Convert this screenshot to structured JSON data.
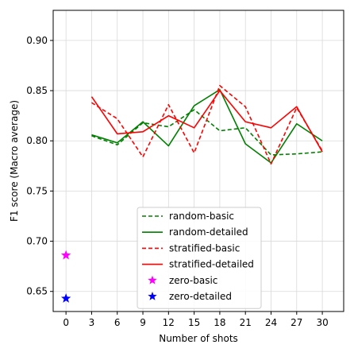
{
  "chart_data": {
    "type": "line",
    "title": "",
    "xlabel": "Number of shots",
    "ylabel": "F1 score (Macro average)",
    "xlim": [
      -1.5,
      32.5
    ],
    "ylim": [
      0.63,
      0.93
    ],
    "xticks": [
      0,
      3,
      6,
      9,
      12,
      15,
      18,
      21,
      24,
      27,
      30
    ],
    "yticks": [
      0.65,
      0.7,
      0.75,
      0.8,
      0.85,
      0.9
    ],
    "ytick_labels": [
      "0.65",
      "0.70",
      "0.75",
      "0.80",
      "0.85",
      "0.90"
    ],
    "grid": true,
    "legend_position": "lower-center",
    "x": [
      3,
      6,
      9,
      12,
      15,
      18,
      21,
      24,
      27,
      30
    ],
    "series": [
      {
        "name": "random-basic",
        "color": "#008000",
        "style": "dashed",
        "values": [
          0.805,
          0.796,
          0.818,
          0.814,
          0.831,
          0.81,
          0.813,
          0.786,
          0.787,
          0.789
        ]
      },
      {
        "name": "random-detailed",
        "color": "#008000",
        "style": "solid",
        "values": [
          0.806,
          0.798,
          0.819,
          0.795,
          0.835,
          0.851,
          0.797,
          0.778,
          0.817,
          0.8
        ]
      },
      {
        "name": "stratified-basic",
        "color": "#ff0000",
        "style": "dashed",
        "values": [
          0.838,
          0.822,
          0.784,
          0.836,
          0.788,
          0.855,
          0.834,
          0.777,
          0.833,
          0.79
        ]
      },
      {
        "name": "stratified-detailed",
        "color": "#ff0000",
        "style": "solid",
        "values": [
          0.844,
          0.807,
          0.809,
          0.825,
          0.813,
          0.85,
          0.819,
          0.813,
          0.834,
          0.789
        ]
      }
    ],
    "points": [
      {
        "name": "zero-basic",
        "color": "#ff00ff",
        "marker": "star",
        "x": 0,
        "y": 0.686
      },
      {
        "name": "zero-detailed",
        "color": "#0000ff",
        "marker": "star",
        "x": 0,
        "y": 0.643
      }
    ]
  }
}
